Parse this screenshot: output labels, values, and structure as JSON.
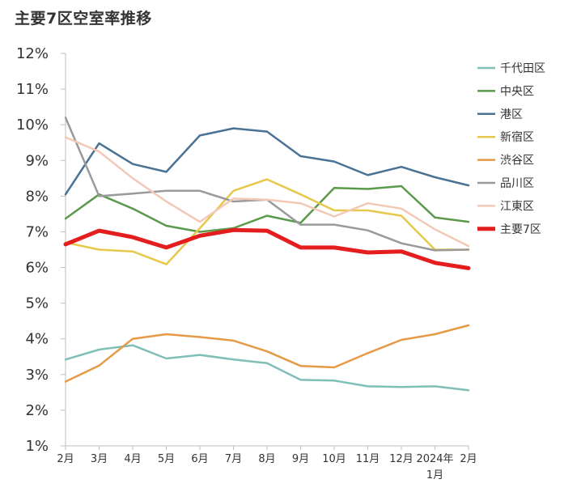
{
  "chart_data": {
    "type": "line",
    "title": "主要7区空室率推移",
    "xlabel": "",
    "ylabel": "",
    "ylim": [
      1,
      12
    ],
    "yticks": [
      1,
      2,
      3,
      4,
      5,
      6,
      7,
      8,
      9,
      10,
      11,
      12
    ],
    "ytick_suffix": "%",
    "categories": [
      "2月",
      "3月",
      "4月",
      "5月",
      "6月",
      "7月",
      "8月",
      "9月",
      "10月",
      "11月",
      "12月",
      "2024年",
      "2月"
    ],
    "category_sublabels": [
      "",
      "",
      "",
      "",
      "",
      "",
      "",
      "",
      "",
      "",
      "",
      "1月",
      ""
    ],
    "legend_position": "right",
    "series": [
      {
        "name": "千代田区",
        "color": "#7fbfb7",
        "width": 2.5,
        "values": [
          3.42,
          3.7,
          3.82,
          3.45,
          3.55,
          3.42,
          3.32,
          2.85,
          2.83,
          2.67,
          2.65,
          2.67,
          2.56
        ]
      },
      {
        "name": "中央区",
        "color": "#5a9a4a",
        "width": 2.5,
        "values": [
          7.37,
          8.05,
          7.65,
          7.17,
          7.0,
          7.1,
          7.45,
          7.25,
          8.23,
          8.2,
          8.28,
          7.4,
          7.28
        ]
      },
      {
        "name": "港区",
        "color": "#4a7294",
        "width": 2.5,
        "values": [
          8.05,
          9.48,
          8.9,
          8.68,
          9.7,
          9.9,
          9.81,
          9.12,
          8.97,
          8.59,
          8.82,
          8.53,
          8.3
        ]
      },
      {
        "name": "新宿区",
        "color": "#e6c84a",
        "width": 2.5,
        "values": [
          6.7,
          6.5,
          6.45,
          6.09,
          7.1,
          8.15,
          8.47,
          8.05,
          7.6,
          7.6,
          7.45,
          6.5,
          6.5
        ]
      },
      {
        "name": "渋谷区",
        "color": "#e59a45",
        "width": 2.5,
        "values": [
          2.8,
          3.25,
          4.0,
          4.13,
          4.05,
          3.95,
          3.65,
          3.24,
          3.2,
          3.6,
          3.97,
          4.13,
          4.38
        ]
      },
      {
        "name": "品川区",
        "color": "#9a9a9a",
        "width": 2.5,
        "values": [
          10.2,
          8.0,
          8.07,
          8.15,
          8.15,
          7.85,
          7.9,
          7.2,
          7.2,
          7.04,
          6.68,
          6.48,
          6.5
        ]
      },
      {
        "name": "江東区",
        "color": "#f2c9b6",
        "width": 2.5,
        "values": [
          9.65,
          9.25,
          8.5,
          7.85,
          7.28,
          7.93,
          7.9,
          7.8,
          7.43,
          7.8,
          7.65,
          7.07,
          6.6
        ]
      },
      {
        "name": "主要7区",
        "color": "#e41e1e",
        "width": 5,
        "values": [
          6.65,
          7.03,
          6.85,
          6.56,
          6.89,
          7.05,
          7.03,
          6.56,
          6.56,
          6.42,
          6.45,
          6.13,
          5.98
        ]
      }
    ]
  }
}
